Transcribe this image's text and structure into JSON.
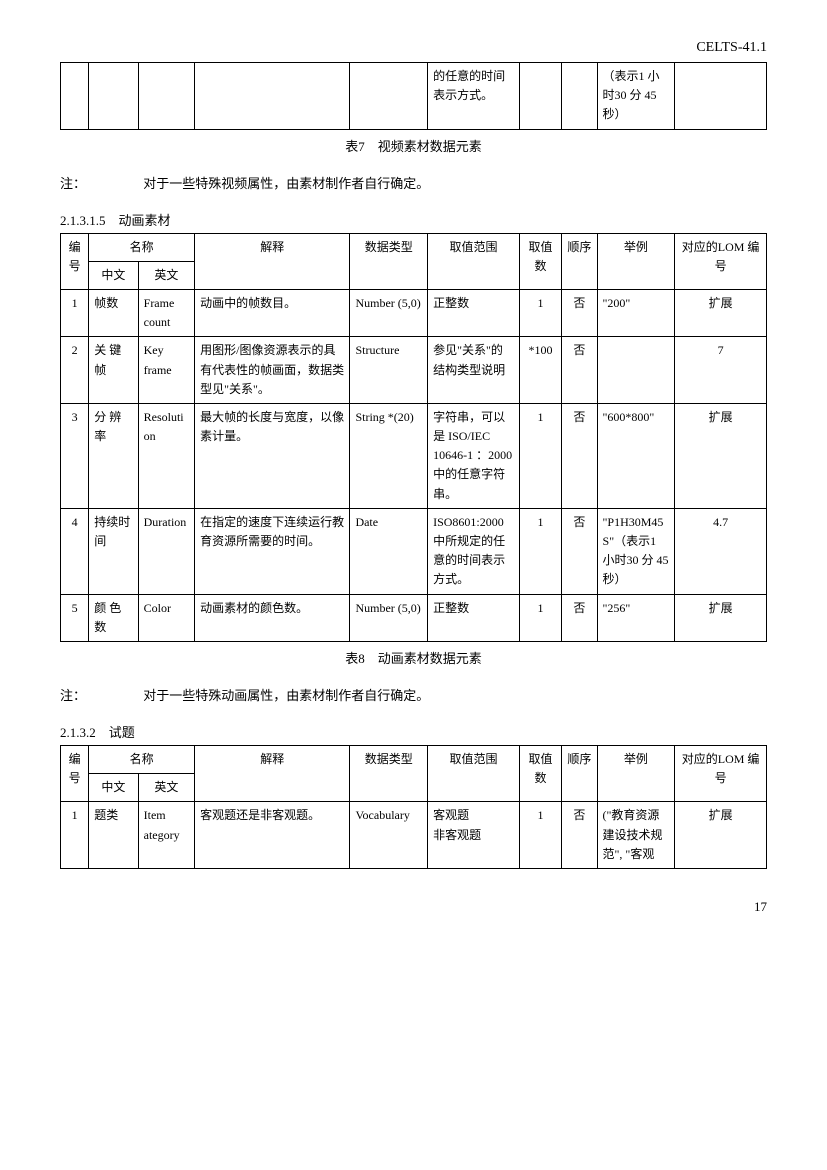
{
  "header": {
    "doc_id": "CELTS-41.1"
  },
  "table7_fragment": {
    "col5": "的任意的时间表示方式。",
    "col8": "（表示1 小时30 分 45秒）"
  },
  "caption7": "表7　视频素材数据元素",
  "note7_label": "注：",
  "note7_text": "对于一些特殊视频属性，由素材制作者自行确定。",
  "section_2_1_3_1_5": "2.1.3.1.5　动画素材",
  "animation_table": {
    "headers": {
      "idx": "编号",
      "name": "名称",
      "zh": "中文",
      "en": "英文",
      "explain": "解释",
      "datatype": "数据类型",
      "range": "取值范围",
      "count": "取值数",
      "order": "顺序",
      "example": "举例",
      "lom": "对应的LOM 编号"
    },
    "rows": [
      {
        "idx": "1",
        "zh": "帧数",
        "en": "Frame count",
        "explain": "动画中的帧数目。",
        "datatype": "Number (5,0)",
        "range": "正整数",
        "count": "1",
        "order": "否",
        "example": "\"200\"",
        "lom": "扩展"
      },
      {
        "idx": "2",
        "zh": "关 键帧",
        "en": "Key frame",
        "explain": "用图形/图像资源表示的具有代表性的帧画面，数据类型见\"关系\"。",
        "datatype": "Structure",
        "range": "参见\"关系\"的结构类型说明",
        "count": "*100",
        "order": "否",
        "example": "",
        "lom": "7"
      },
      {
        "idx": "3",
        "zh": "分 辨率",
        "en": "Resolution",
        "explain": "最大帧的长度与宽度，以像素计量。",
        "datatype": "String *(20)",
        "range": "字符串，可以是 ISO/IEC 10646-1 ：2000 中的任意字符串。",
        "count": "1",
        "order": "否",
        "example": "\"600*800\"",
        "lom": "扩展"
      },
      {
        "idx": "4",
        "zh": "持续时间",
        "en": "Duration",
        "explain": "在指定的速度下连续运行教育资源所需要的时间。",
        "datatype": "Date",
        "range": "ISO8601:2000 中所规定的任意的时间表示方式。",
        "count": "1",
        "order": "否",
        "example": "\"P1H30M45S\"（表示1 小时30 分 45秒）",
        "lom": "4.7"
      },
      {
        "idx": "5",
        "zh": "颜 色数",
        "en": "Color",
        "explain": "动画素材的颜色数。",
        "datatype": "Number (5,0)",
        "range": "正整数",
        "count": "1",
        "order": "否",
        "example": "\"256\"",
        "lom": "扩展"
      }
    ]
  },
  "caption8": "表8　动画素材数据元素",
  "note8_label": "注：",
  "note8_text": "对于一些特殊动画属性，由素材制作者自行确定。",
  "section_2_1_3_2": "2.1.3.2　试题",
  "question_table": {
    "headers": {
      "idx": "编号",
      "name": "名称",
      "zh": "中文",
      "en": "英文",
      "explain": "解释",
      "datatype": "数据类型",
      "range": "取值范围",
      "count": "取值数",
      "order": "顺序",
      "example": "举例",
      "lom": "对应的LOM 编号"
    },
    "rows": [
      {
        "idx": "1",
        "zh": "题类",
        "en": "Item ategory",
        "explain": "客观题还是非客观题。",
        "datatype": "Vocabulary",
        "range": "客观题\n非客观题",
        "count": "1",
        "order": "否",
        "example": "(\"教育资源建设技术规范\", \"客观",
        "lom": "扩展"
      }
    ]
  },
  "page_number": "17"
}
